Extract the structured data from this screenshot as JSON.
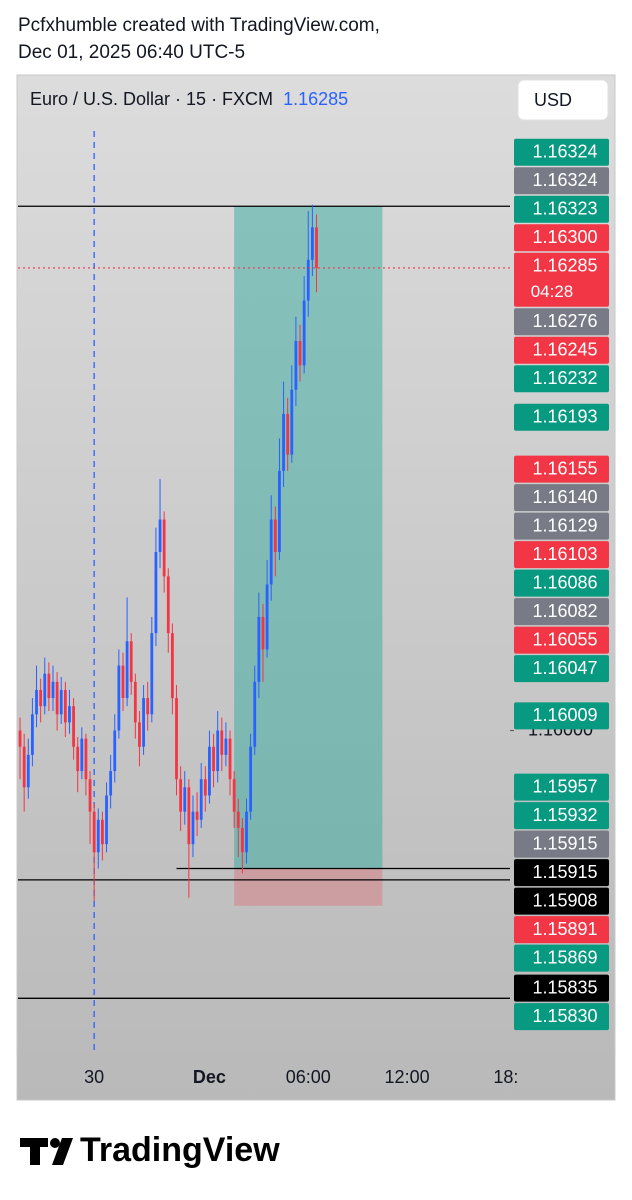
{
  "chart_data": {
    "type": "candlestick",
    "title": "Pcfxhumble created with TradingView.com,",
    "subtitle": "Dec 01, 2025 06:40 UTC-5",
    "symbol": "Euro / U.S. Dollar · 15 · FXCM",
    "symbol_price": "1.16285",
    "currency": "USD",
    "brand": "TradingView",
    "up_color": "#2962ff",
    "down_color": "#f23645",
    "xlim": [
      -0.5,
      119
    ],
    "ylim": [
      1.15797,
      1.1637
    ],
    "xticks": [
      {
        "value": 18,
        "label": "30"
      },
      {
        "value": 46,
        "label": "Dec"
      },
      {
        "value": 70,
        "label": "06:00"
      },
      {
        "value": 94,
        "label": "12:00"
      },
      {
        "value": 118,
        "label": "18:"
      }
    ],
    "bold_xtick": "Dec",
    "yticks": [
      {
        "value": 1.16,
        "label": "1.16000"
      }
    ],
    "session_breaks": [
      18
    ],
    "open": [
      1.16,
      1.1599,
      1.15965,
      1.15985,
      1.1601,
      1.16025,
      1.16015,
      1.16035,
      1.1602,
      1.1603,
      1.1601,
      1.16025,
      1.16005,
      1.16015,
      1.1599,
      1.15975,
      1.15995,
      1.1597,
      1.1595,
      1.15925,
      1.15945,
      1.1593,
      1.1596,
      1.15975,
      1.16,
      1.1604,
      1.1602,
      1.16055,
      1.1603,
      1.16005,
      1.1599,
      1.1602,
      1.1601,
      1.1606,
      1.1611,
      1.1613,
      1.16095,
      1.1606,
      1.1602,
      1.1597,
      1.1595,
      1.15965,
      1.1593,
      1.1595,
      1.15945,
      1.1597,
      1.1596,
      1.1599,
      1.15975,
      1.16,
      1.15985,
      1.15995,
      1.1597,
      1.1595,
      1.1594,
      1.15925,
      1.1595,
      1.1599,
      1.1603,
      1.1607,
      1.1605,
      1.1609,
      1.1613,
      1.1611,
      1.1616,
      1.16195,
      1.1617,
      1.1621,
      1.1624,
      1.16225,
      1.16265,
      1.1629,
      1.1631
    ],
    "high": [
      1.16008,
      1.15998,
      1.15995,
      1.1602,
      1.1604,
      1.16032,
      1.16045,
      1.16042,
      1.1604,
      1.16036,
      1.16033,
      1.1603,
      1.16025,
      1.1602,
      1.15996,
      1.16002,
      1.15998,
      1.15975,
      1.15955,
      1.15952,
      1.1595,
      1.15968,
      1.15985,
      1.1601,
      1.1605,
      1.16048,
      1.16082,
      1.1606,
      1.16035,
      1.16012,
      1.16028,
      1.1603,
      1.1607,
      1.16125,
      1.16155,
      1.16135,
      1.161,
      1.16066,
      1.16028,
      1.15978,
      1.15975,
      1.1597,
      1.1596,
      1.15962,
      1.1598,
      1.15978,
      1.16,
      1.15998,
      1.16012,
      1.16008,
      1.16005,
      1.16,
      1.15975,
      1.15958,
      1.15946,
      1.15958,
      1.15998,
      1.1604,
      1.16085,
      1.16078,
      1.16105,
      1.16145,
      1.16138,
      1.1618,
      1.16215,
      1.16205,
      1.16225,
      1.16255,
      1.1625,
      1.1628,
      1.1632,
      1.16324,
      1.16318
    ],
    "low": [
      1.1597,
      1.1595,
      1.15958,
      1.15978,
      1.16002,
      1.16005,
      1.1601,
      1.16012,
      1.16012,
      1.16,
      1.16004,
      1.15996,
      1.15998,
      1.15982,
      1.15962,
      1.1597,
      1.1596,
      1.1593,
      1.15895,
      1.15915,
      1.1592,
      1.15925,
      1.15952,
      1.15968,
      1.15995,
      1.16012,
      1.16015,
      1.16022,
      1.15995,
      1.15978,
      1.15985,
      1.16,
      1.16005,
      1.16052,
      1.161,
      1.16085,
      1.16048,
      1.1601,
      1.1596,
      1.15938,
      1.15942,
      1.15897,
      1.15922,
      1.15935,
      1.1594,
      1.1595,
      1.15955,
      1.15965,
      1.15968,
      1.15975,
      1.15978,
      1.1596,
      1.1594,
      1.15922,
      1.15912,
      1.15918,
      1.15945,
      1.15985,
      1.1602,
      1.1603,
      1.16045,
      1.1608,
      1.16095,
      1.16105,
      1.1615,
      1.1616,
      1.16165,
      1.162,
      1.16215,
      1.1622,
      1.16255,
      1.1628,
      1.1627
    ],
    "close": [
      1.1599,
      1.15965,
      1.15985,
      1.1601,
      1.16025,
      1.16015,
      1.16035,
      1.1602,
      1.1603,
      1.1601,
      1.16025,
      1.16005,
      1.16015,
      1.1599,
      1.15975,
      1.15995,
      1.1597,
      1.1595,
      1.15925,
      1.15945,
      1.1593,
      1.1596,
      1.15975,
      1.16,
      1.1604,
      1.1602,
      1.16055,
      1.1603,
      1.16005,
      1.1599,
      1.1602,
      1.1601,
      1.1606,
      1.1611,
      1.1613,
      1.16095,
      1.1606,
      1.1602,
      1.1597,
      1.1595,
      1.15965,
      1.1593,
      1.1595,
      1.15945,
      1.1597,
      1.1596,
      1.1599,
      1.15975,
      1.16,
      1.15985,
      1.15995,
      1.1597,
      1.1595,
      1.1594,
      1.15925,
      1.1595,
      1.1599,
      1.1603,
      1.1607,
      1.1605,
      1.1609,
      1.1613,
      1.1611,
      1.1616,
      1.16195,
      1.1617,
      1.1621,
      1.1624,
      1.16225,
      1.16265,
      1.1629,
      1.1631,
      1.16285
    ],
    "position": {
      "start": 52,
      "end": 88,
      "target": 1.16323,
      "entry": 1.15915,
      "stop": 1.15892
    },
    "horizontal_lines": [
      {
        "price": 1.16323
      },
      {
        "price": 1.15915,
        "start": 38
      },
      {
        "price": 1.15908
      },
      {
        "price": 1.15835
      }
    ],
    "price_tags": [
      {
        "value": 1.16324,
        "label": "1.16324",
        "color": "#089981"
      },
      {
        "value": 1.16324,
        "label": "1.16324",
        "color": "#787b86"
      },
      {
        "value": 1.16323,
        "label": "1.16323",
        "color": "#089981"
      },
      {
        "value": 1.163,
        "label": "1.16300",
        "color": "#f23645"
      },
      {
        "value": 1.16285,
        "label": "1.16285",
        "color": "#f23645",
        "countdown": "04:28",
        "current": true
      },
      {
        "value": 1.16276,
        "label": "1.16276",
        "color": "#787b86"
      },
      {
        "value": 1.16245,
        "label": "1.16245",
        "color": "#f23645"
      },
      {
        "value": 1.16232,
        "label": "1.16232",
        "color": "#089981"
      },
      {
        "value": 1.16193,
        "label": "1.16193",
        "color": "#089981"
      },
      {
        "value": 1.16155,
        "label": "1.16155",
        "color": "#f23645"
      },
      {
        "value": 1.1614,
        "label": "1.16140",
        "color": "#787b86"
      },
      {
        "value": 1.16129,
        "label": "1.16129",
        "color": "#787b86"
      },
      {
        "value": 1.16103,
        "label": "1.16103",
        "color": "#f23645"
      },
      {
        "value": 1.16086,
        "label": "1.16086",
        "color": "#089981"
      },
      {
        "value": 1.16082,
        "label": "1.16082",
        "color": "#787b86"
      },
      {
        "value": 1.16055,
        "label": "1.16055",
        "color": "#f23645"
      },
      {
        "value": 1.16047,
        "label": "1.16047",
        "color": "#089981"
      },
      {
        "value": 1.16009,
        "label": "1.16009",
        "color": "#089981"
      },
      {
        "value": 1.15957,
        "label": "1.15957",
        "color": "#089981"
      },
      {
        "value": 1.15932,
        "label": "1.15932",
        "color": "#089981"
      },
      {
        "value": 1.15915,
        "label": "1.15915",
        "color": "#787b86"
      },
      {
        "value": 1.15915,
        "label": "1.15915",
        "color": "#000000"
      },
      {
        "value": 1.15908,
        "label": "1.15908",
        "color": "#000000"
      },
      {
        "value": 1.15891,
        "label": "1.15891",
        "color": "#f23645"
      },
      {
        "value": 1.15869,
        "label": "1.15869",
        "color": "#089981"
      },
      {
        "value": 1.15835,
        "label": "1.15835",
        "color": "#000000"
      },
      {
        "value": 1.1583,
        "label": "1.15830",
        "color": "#089981"
      }
    ]
  }
}
